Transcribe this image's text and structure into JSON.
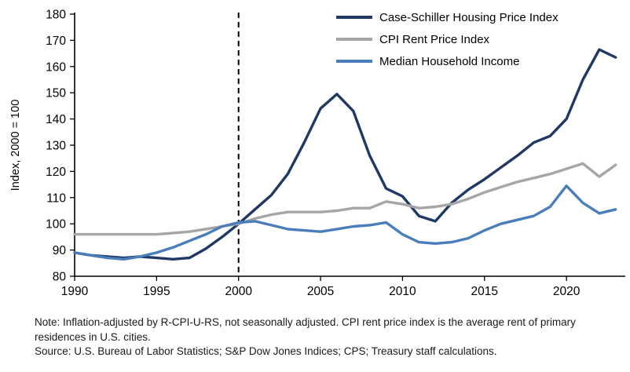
{
  "chart_data": {
    "type": "line",
    "ylabel": "Index, 2000 = 100",
    "xlabel": "",
    "x_ticks": [
      1990,
      1995,
      2000,
      2005,
      2010,
      2015,
      2020
    ],
    "y_ticks": [
      80,
      90,
      100,
      110,
      120,
      130,
      140,
      150,
      160,
      170,
      180
    ],
    "xlim": [
      1990,
      2023.3
    ],
    "ylim": [
      80,
      180
    ],
    "grid": false,
    "legend_position": "top-right-inside",
    "reference_line": {
      "type": "vertical-dashed",
      "x": 2000,
      "color": "#000000"
    },
    "x": [
      1990,
      1991,
      1992,
      1993,
      1994,
      1995,
      1996,
      1997,
      1998,
      1999,
      2000,
      2001,
      2002,
      2003,
      2004,
      2005,
      2006,
      2007,
      2008,
      2009,
      2010,
      2011,
      2012,
      2013,
      2014,
      2015,
      2016,
      2017,
      2018,
      2019,
      2020,
      2021,
      2022,
      2023
    ],
    "series": [
      {
        "name": "Case-Schiller Housing Price Index",
        "color": "#1f3864",
        "width": 3.4,
        "values": [
          89,
          88,
          87.5,
          87,
          87.5,
          87,
          86.5,
          87,
          90.5,
          95,
          100,
          105.5,
          111,
          119,
          131,
          144,
          149.5,
          143,
          126,
          113.5,
          110.5,
          103,
          101,
          108,
          113,
          117,
          121.5,
          126,
          131,
          133.5,
          140,
          155,
          166.5,
          163.5
        ]
      },
      {
        "name": "CPI Rent Price Index",
        "color": "#a6a6a6",
        "width": 3.4,
        "values": [
          96,
          96,
          96,
          96,
          96,
          96,
          96.5,
          97,
          98,
          99,
          100,
          102,
          103.5,
          104.5,
          104.5,
          104.5,
          105,
          106,
          106,
          108.5,
          107.5,
          106,
          106.5,
          107.5,
          109.5,
          112,
          114,
          116,
          117.5,
          119,
          121,
          123,
          118,
          122.5
        ]
      },
      {
        "name": "Median Household Income",
        "color": "#4a7ebb",
        "width": 3.4,
        "values": [
          89,
          88,
          87,
          86.5,
          87.5,
          89,
          91,
          93.5,
          96,
          99,
          100.5,
          101,
          99.5,
          98,
          97.5,
          97,
          98,
          99,
          99.5,
          100.5,
          96,
          93,
          92.5,
          93,
          94.5,
          97.5,
          100,
          101.5,
          103,
          106.5,
          114.5,
          108,
          104,
          105.5
        ]
      }
    ]
  },
  "notes": {
    "note": "Note: Inflation-adjusted by R-CPI-U-RS, not seasonally adjusted. CPI rent price index is the average rent of primary residences in U.S. cities.",
    "source": "Source: U.S. Bureau of Labor Statistics; S&P Dow Jones Indices; CPS; Treasury staff calculations."
  }
}
